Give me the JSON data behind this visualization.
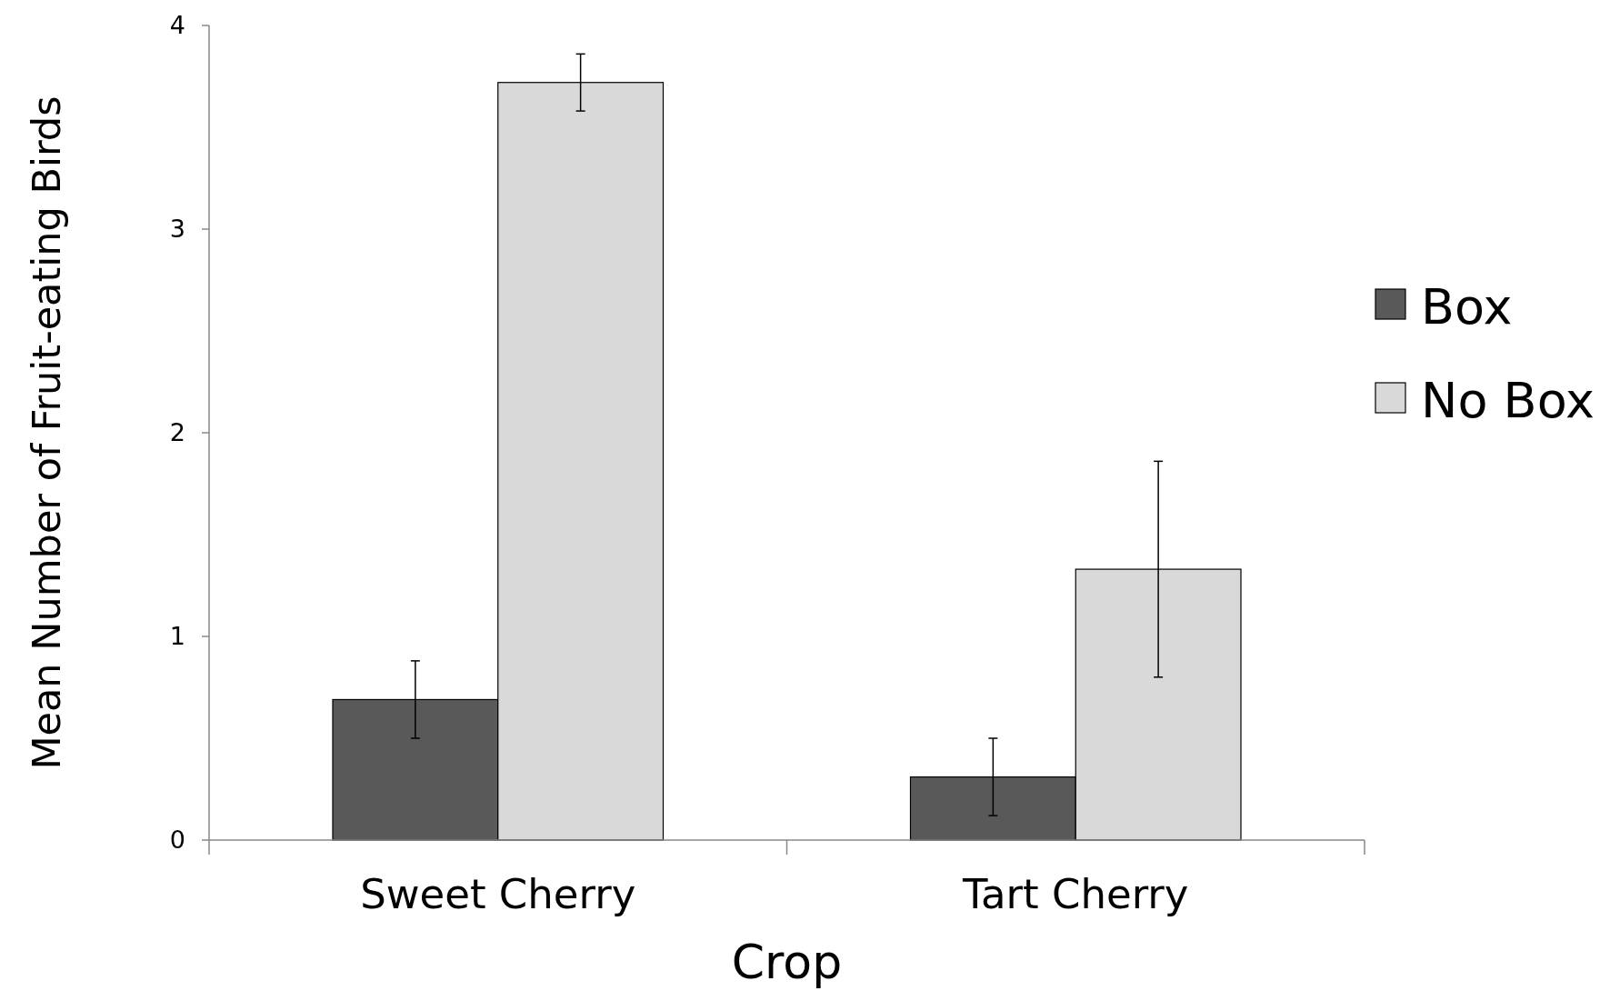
{
  "chart_data": {
    "type": "bar",
    "xlabel": "Crop",
    "ylabel": "Mean Number of Fruit-eating Birds",
    "categories": [
      "Sweet Cherry",
      "Tart Cherry"
    ],
    "series": [
      {
        "name": "Box",
        "color": "#595959",
        "values": [
          0.69,
          0.31
        ],
        "errors": [
          0.19,
          0.19
        ]
      },
      {
        "name": "No Box",
        "color": "#d9d9d9",
        "values": [
          3.72,
          1.33
        ],
        "errors": [
          0.14,
          0.53
        ]
      }
    ],
    "ylim": [
      0,
      4
    ],
    "yticks": [
      0,
      1,
      2,
      3,
      4
    ],
    "grid": false,
    "legend": "right"
  }
}
